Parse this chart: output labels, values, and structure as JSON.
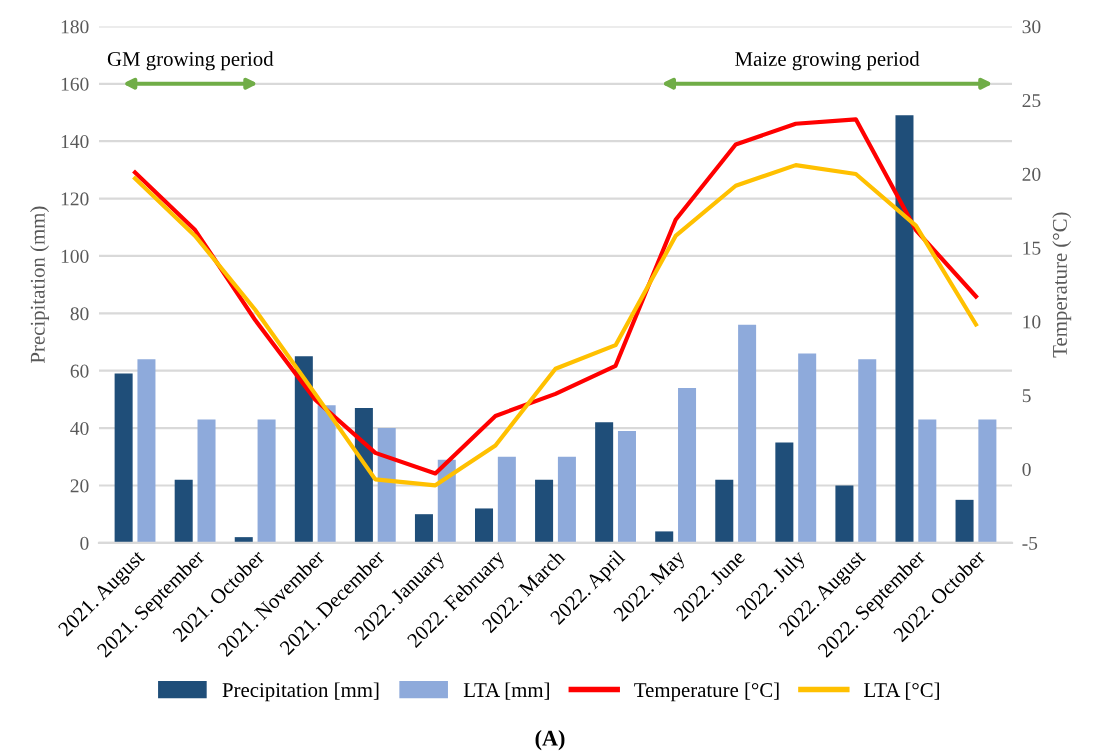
{
  "chart_data": {
    "type": "bar",
    "categories": [
      "2021. August",
      "2021. September",
      "2021. October",
      "2021. November",
      "2021. December",
      "2022. January",
      "2022. February",
      "2022. March",
      "2022. April",
      "2022. May",
      "2022. June",
      "2022. July",
      "2022. August",
      "2022. September",
      "2022. October"
    ],
    "series": [
      {
        "name": "Precipitation [mm]",
        "color": "#1f4e79",
        "values": [
          59,
          22,
          2,
          65,
          47,
          10,
          12,
          22,
          42,
          4,
          22,
          35,
          20,
          149,
          15
        ]
      },
      {
        "name": "LTA [mm]",
        "color": "#8eaadb",
        "values": [
          64,
          43,
          43,
          48,
          40,
          29,
          30,
          30,
          39,
          54,
          76,
          66,
          64,
          43,
          43
        ]
      },
      {
        "name": "Temperature [°C]",
        "type": "line",
        "axis": "y2",
        "color": "#ff0000",
        "values": [
          20.1,
          16.2,
          10.1,
          4.7,
          1.1,
          -0.3,
          3.6,
          5.1,
          7.0,
          16.9,
          22.0,
          23.4,
          23.7,
          16.2,
          11.7
        ]
      },
      {
        "name": "LTA [°C]",
        "type": "line",
        "axis": "y2",
        "color": "#ffc000",
        "values": [
          19.7,
          15.8,
          10.8,
          5.1,
          -0.7,
          -1.1,
          1.6,
          6.8,
          8.4,
          15.8,
          19.2,
          20.6,
          20.0,
          16.5,
          9.8
        ]
      }
    ],
    "ylabel": "Precipitation (mm)",
    "y2label": "Temperature (°C)",
    "ylim": [
      0,
      180
    ],
    "yticks": [
      0,
      20,
      40,
      60,
      80,
      100,
      120,
      140,
      160,
      180
    ],
    "y2lim": [
      -5,
      30
    ],
    "y2ticks": [
      -5,
      0,
      5,
      10,
      15,
      20,
      25,
      30
    ],
    "grid": "y",
    "legend": "bottom",
    "annotations": [
      "GM growing period",
      "Maize growing period",
      "(A)"
    ]
  }
}
